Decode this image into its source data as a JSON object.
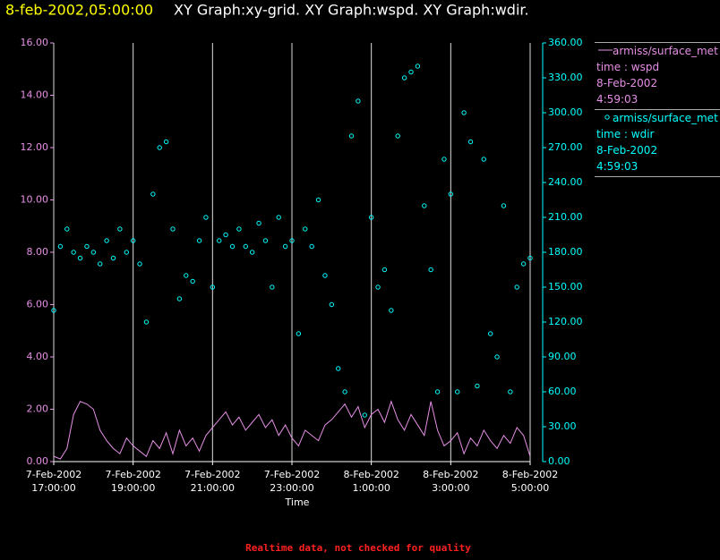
{
  "chart_data": {
    "type": "line",
    "title": "8-feb-2002,05:00:00",
    "subtitle": "XY Graph:xy-grid.  XY Graph:wspd.  XY Graph:wdir.",
    "xlabel": "Time",
    "annotation": "Realtime data, not checked for quality",
    "grid": true,
    "legend": "right",
    "xlim": [
      "2002-02-07T17:00",
      "2002-02-08T05:00"
    ],
    "xticks": [
      {
        "value": "2002-02-07T17:00",
        "label": "7-Feb-2002 17:00:00"
      },
      {
        "value": "2002-02-07T19:00",
        "label": "7-Feb-2002 19:00:00"
      },
      {
        "value": "2002-02-07T21:00",
        "label": "7-Feb-2002 21:00:00"
      },
      {
        "value": "2002-02-07T23:00",
        "label": "7-Feb-2002 23:00:00"
      },
      {
        "value": "2002-02-08T01:00",
        "label": "8-Feb-2002 1:00:00"
      },
      {
        "value": "2002-02-08T03:00",
        "label": "8-Feb-2002 3:00:00"
      },
      {
        "value": "2002-02-08T05:00",
        "label": "8-Feb-2002 5:00:00"
      }
    ],
    "ylim": [
      0,
      16
    ],
    "yticks": [
      {
        "value": 0,
        "label": "0.00"
      },
      {
        "value": 2,
        "label": "2.00"
      },
      {
        "value": 4,
        "label": "4.00"
      },
      {
        "value": 6,
        "label": "6.00"
      },
      {
        "value": 8,
        "label": "8.00"
      },
      {
        "value": 10,
        "label": "10.00"
      },
      {
        "value": 12,
        "label": "12.00"
      },
      {
        "value": 14,
        "label": "14.00"
      },
      {
        "value": 16,
        "label": "16.00"
      }
    ],
    "y2lim": [
      0,
      360
    ],
    "y2ticks": [
      {
        "value": 0,
        "label": "0.00"
      },
      {
        "value": 30,
        "label": "30.00"
      },
      {
        "value": 60,
        "label": "60.00"
      },
      {
        "value": 90,
        "label": "90.00"
      },
      {
        "value": 120,
        "label": "120.00"
      },
      {
        "value": 150,
        "label": "150.00"
      },
      {
        "value": 180,
        "label": "180.00"
      },
      {
        "value": 210,
        "label": "210.00"
      },
      {
        "value": 240,
        "label": "240.00"
      },
      {
        "value": 270,
        "label": "270.00"
      },
      {
        "value": 300,
        "label": "300.00"
      },
      {
        "value": 330,
        "label": "330.00"
      },
      {
        "value": 360,
        "label": "360.00"
      }
    ],
    "x": [
      "2002-02-07T17:00",
      "2002-02-07T17:10",
      "2002-02-07T17:20",
      "2002-02-07T17:30",
      "2002-02-07T17:40",
      "2002-02-07T17:50",
      "2002-02-07T18:00",
      "2002-02-07T18:10",
      "2002-02-07T18:20",
      "2002-02-07T18:30",
      "2002-02-07T18:40",
      "2002-02-07T18:50",
      "2002-02-07T19:00",
      "2002-02-07T19:10",
      "2002-02-07T19:20",
      "2002-02-07T19:30",
      "2002-02-07T19:40",
      "2002-02-07T19:50",
      "2002-02-07T20:00",
      "2002-02-07T20:10",
      "2002-02-07T20:20",
      "2002-02-07T20:30",
      "2002-02-07T20:40",
      "2002-02-07T20:50",
      "2002-02-07T21:00",
      "2002-02-07T21:10",
      "2002-02-07T21:20",
      "2002-02-07T21:30",
      "2002-02-07T21:40",
      "2002-02-07T21:50",
      "2002-02-07T22:00",
      "2002-02-07T22:10",
      "2002-02-07T22:20",
      "2002-02-07T22:30",
      "2002-02-07T22:40",
      "2002-02-07T22:50",
      "2002-02-07T23:00",
      "2002-02-07T23:10",
      "2002-02-07T23:20",
      "2002-02-07T23:30",
      "2002-02-07T23:40",
      "2002-02-07T23:50",
      "2002-02-08T00:00",
      "2002-02-08T00:10",
      "2002-02-08T00:20",
      "2002-02-08T00:30",
      "2002-02-08T00:40",
      "2002-02-08T00:50",
      "2002-02-08T01:00",
      "2002-02-08T01:10",
      "2002-02-08T01:20",
      "2002-02-08T01:30",
      "2002-02-08T01:40",
      "2002-02-08T01:50",
      "2002-02-08T02:00",
      "2002-02-08T02:10",
      "2002-02-08T02:20",
      "2002-02-08T02:30",
      "2002-02-08T02:40",
      "2002-02-08T02:50",
      "2002-02-08T03:00",
      "2002-02-08T03:10",
      "2002-02-08T03:20",
      "2002-02-08T03:30",
      "2002-02-08T03:40",
      "2002-02-08T03:50",
      "2002-02-08T04:00",
      "2002-02-08T04:10",
      "2002-02-08T04:20",
      "2002-02-08T04:30",
      "2002-02-08T04:40",
      "2002-02-08T04:50",
      "2002-02-08T05:00"
    ],
    "series": [
      {
        "name": "armiss/surface_met",
        "legend_lines": [
          "time : wspd",
          "8-Feb-2002",
          "4:59:03"
        ],
        "color": "#e68fe6",
        "type": "line",
        "values": [
          0.2,
          0.1,
          0.5,
          1.8,
          2.3,
          2.2,
          2.0,
          1.2,
          0.8,
          0.5,
          0.3,
          0.9,
          0.6,
          0.4,
          0.2,
          0.8,
          0.5,
          1.1,
          0.3,
          1.2,
          0.6,
          0.9,
          0.4,
          1.0,
          1.3,
          1.6,
          1.9,
          1.4,
          1.7,
          1.2,
          1.5,
          1.8,
          1.3,
          1.6,
          1.0,
          1.4,
          0.9,
          0.6,
          1.2,
          1.0,
          0.8,
          1.4,
          1.6,
          1.9,
          2.2,
          1.7,
          2.1,
          1.3,
          1.8,
          2.0,
          1.5,
          2.3,
          1.6,
          1.2,
          1.8,
          1.4,
          1.0,
          2.3,
          1.2,
          0.6,
          0.8,
          1.1,
          0.3,
          0.9,
          0.6,
          1.2,
          0.8,
          0.5,
          1.0,
          0.7,
          1.3,
          1.0,
          0.2
        ]
      },
      {
        "name": "armiss/surface_met",
        "legend_lines": [
          "time : wdir",
          "8-Feb-2002",
          "4:59:03"
        ],
        "color": "#00ffff",
        "type": "scatter",
        "axis": "y2",
        "values": [
          130,
          185,
          200,
          180,
          175,
          185,
          180,
          170,
          190,
          175,
          200,
          180,
          190,
          170,
          120,
          230,
          270,
          275,
          200,
          140,
          160,
          155,
          190,
          210,
          150,
          190,
          195,
          185,
          200,
          185,
          180,
          205,
          190,
          150,
          210,
          185,
          190,
          110,
          200,
          185,
          225,
          160,
          135,
          80,
          60,
          280,
          310,
          40,
          210,
          150,
          165,
          130,
          280,
          330,
          335,
          340,
          220,
          165,
          60,
          260,
          230,
          60,
          300,
          275,
          65,
          260,
          110,
          90,
          220,
          60,
          150,
          170,
          175
        ]
      }
    ]
  }
}
